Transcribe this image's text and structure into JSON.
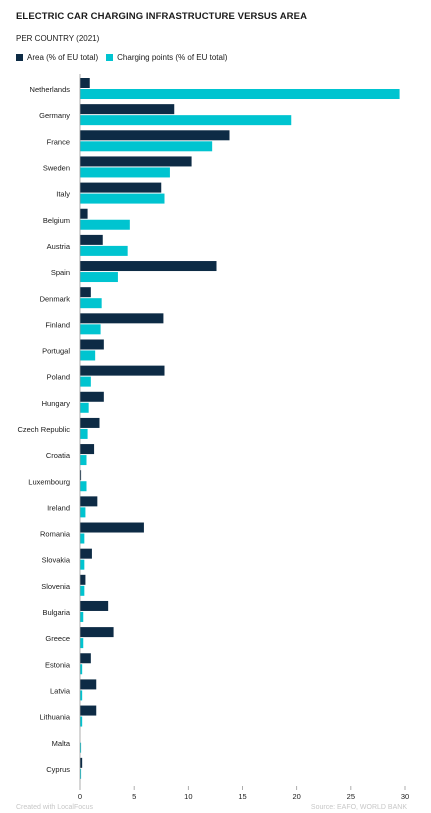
{
  "colors": {
    "area": "#0d2b45",
    "charging": "#00c4d0",
    "axis": "#999999",
    "text": "#1a1a1a",
    "footer": "#c7c7c7"
  },
  "footer": {
    "left": "Created with LocalFocus",
    "right": "Source: EAFO, WORLD BANK"
  },
  "chart_data": {
    "type": "bar",
    "orientation": "horizontal",
    "title": "ELECTRIC CAR CHARGING INFRASTRUCTURE VERSUS AREA",
    "subtitle": "PER COUNTRY (2021)",
    "categories": [
      "Netherlands",
      "Germany",
      "France",
      "Sweden",
      "Italy",
      "Belgium",
      "Austria",
      "Spain",
      "Denmark",
      "Finland",
      "Portugal",
      "Poland",
      "Hungary",
      "Czech Republic",
      "Croatia",
      "Luxembourg",
      "Ireland",
      "Romania",
      "Slovakia",
      "Slovenia",
      "Bulgaria",
      "Greece",
      "Estonia",
      "Latvia",
      "Lithuania",
      "Malta",
      "Cyprus"
    ],
    "series": [
      {
        "name": "Area (% of EU total)",
        "values": [
          0.9,
          8.7,
          13.8,
          10.3,
          7.5,
          0.7,
          2.1,
          12.6,
          1.0,
          7.7,
          2.2,
          7.8,
          2.2,
          1.8,
          1.3,
          0.1,
          1.6,
          5.9,
          1.1,
          0.5,
          2.6,
          3.1,
          1.0,
          1.5,
          1.5,
          0.0,
          0.2
        ]
      },
      {
        "name": "Charging points (% of EU total)",
        "values": [
          29.5,
          19.5,
          12.2,
          8.3,
          7.8,
          4.6,
          4.4,
          3.5,
          2.0,
          1.9,
          1.4,
          1.0,
          0.8,
          0.7,
          0.6,
          0.6,
          0.5,
          0.4,
          0.4,
          0.4,
          0.3,
          0.3,
          0.2,
          0.2,
          0.2,
          0.1,
          0.1
        ]
      }
    ],
    "xlim": [
      0,
      30
    ],
    "xticks": [
      "0",
      "5",
      "10",
      "15",
      "20",
      "25",
      "30"
    ],
    "legend_position": "top-left",
    "grid": false
  }
}
